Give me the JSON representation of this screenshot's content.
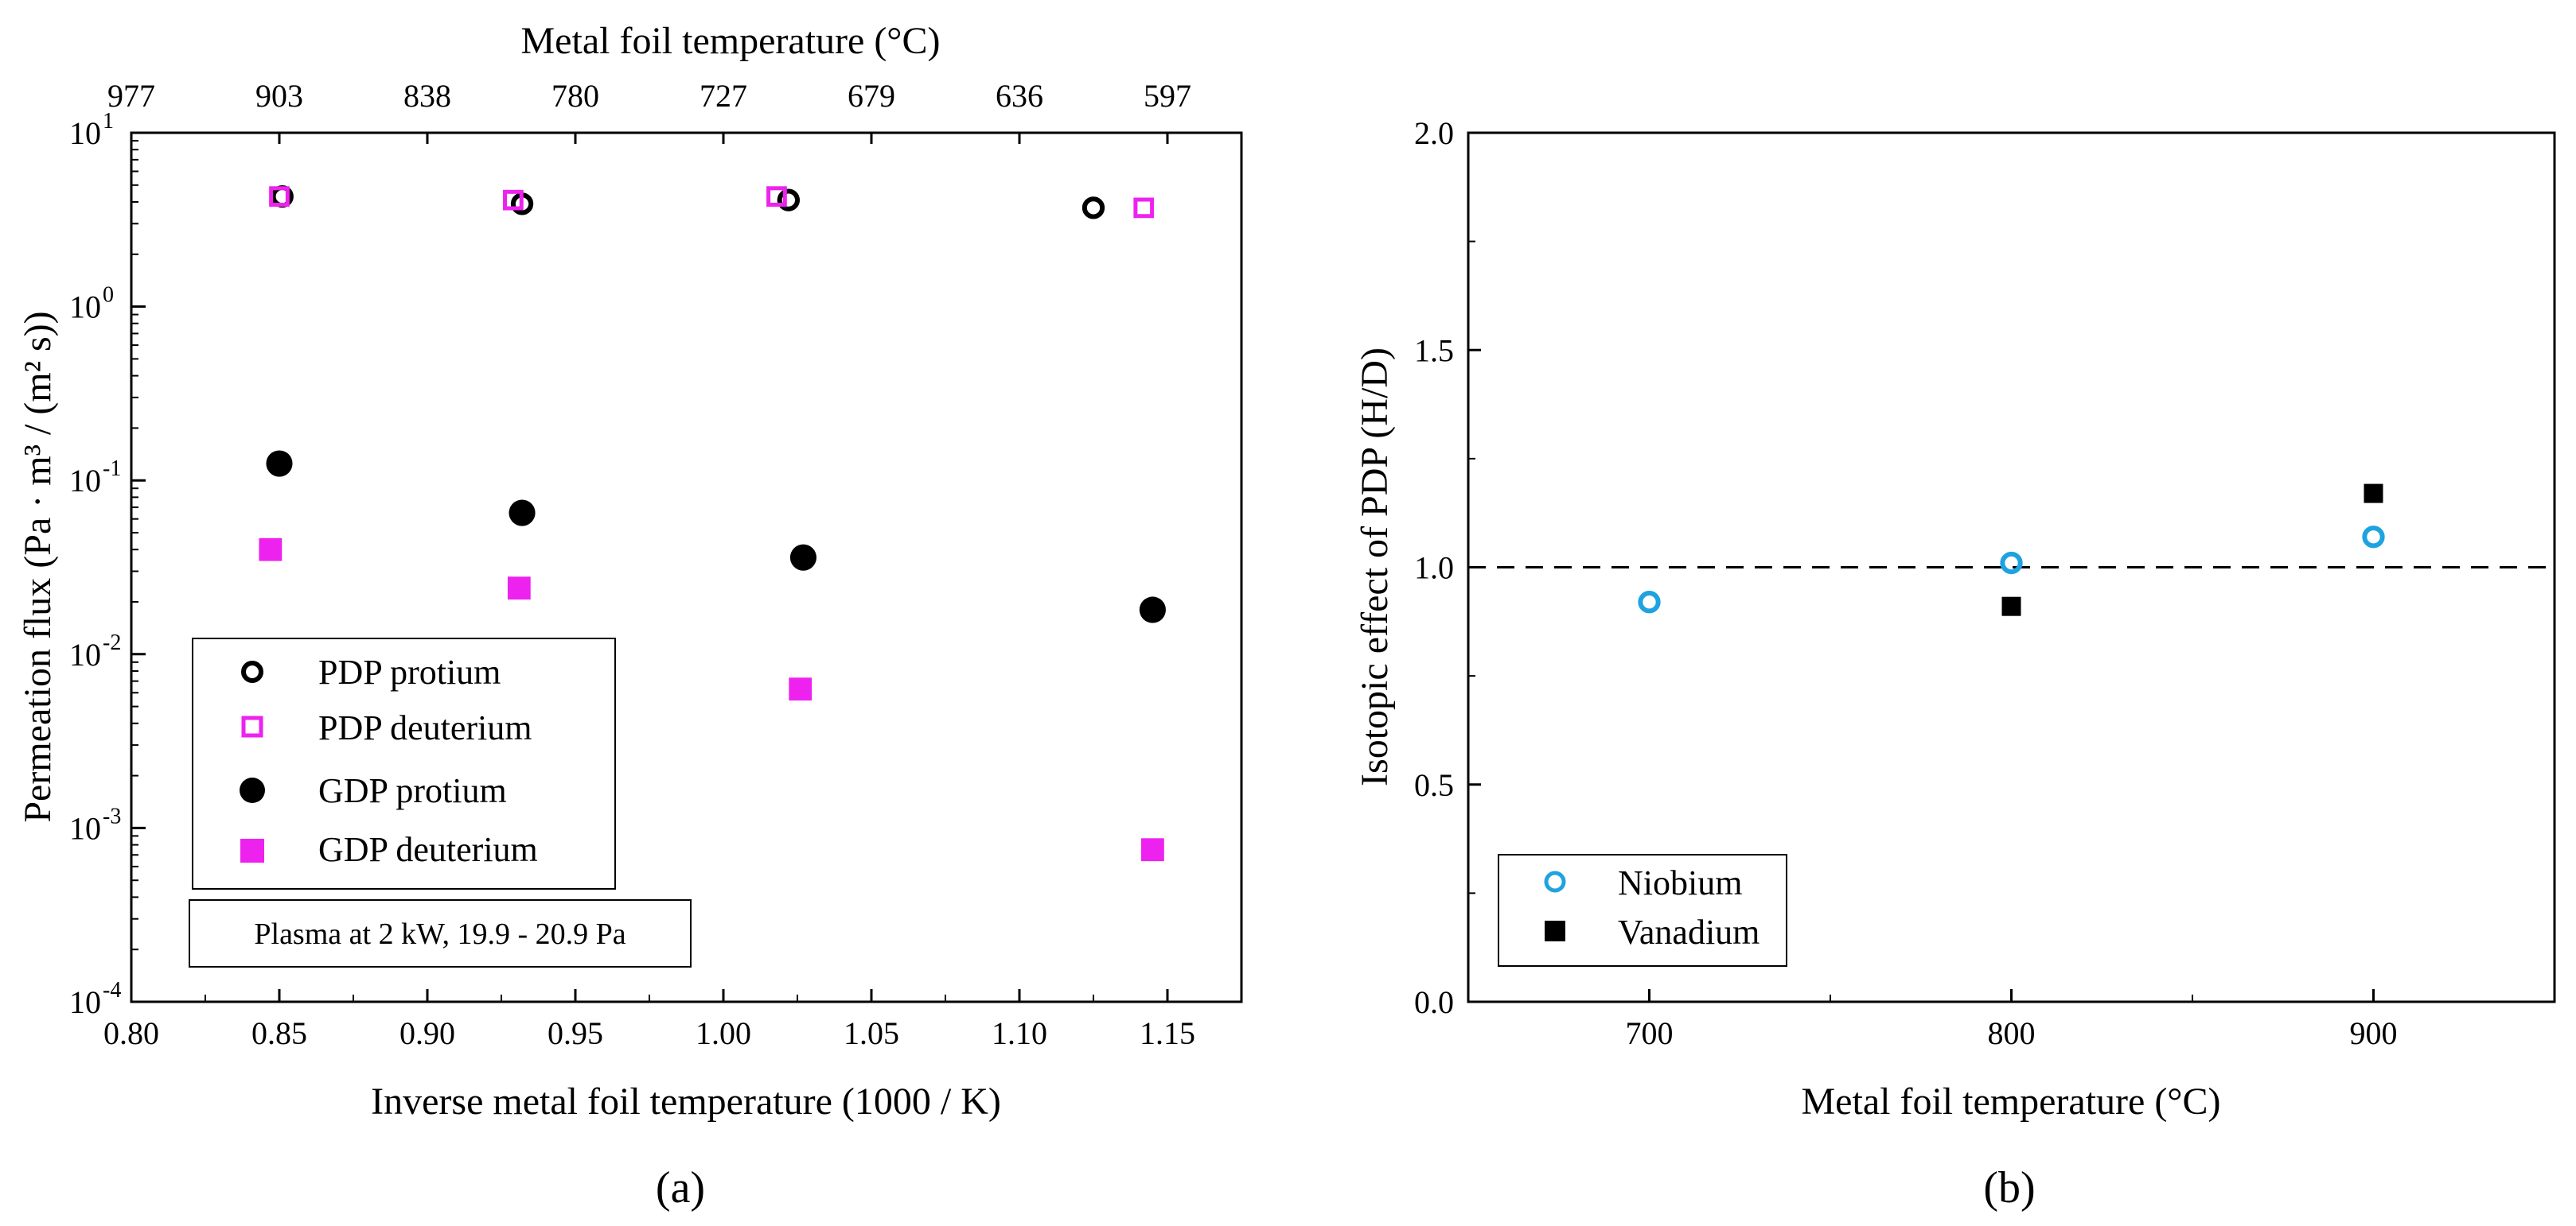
{
  "chart_data": [
    {
      "panel_label": "(a)",
      "type": "scatter",
      "xlabel": "Inverse metal foil temperature (1000 / K)",
      "ylabel": "Permeation flux (Pa · m³ / (m² s))",
      "top_xlabel": "Metal foil temperature (°C)",
      "xlim": [
        0.8,
        1.175
      ],
      "ylim": [
        0.0001,
        10
      ],
      "yscale": "log",
      "x_ticks": [
        {
          "value": 0.8,
          "label": "0.80"
        },
        {
          "value": 0.85,
          "label": "0.85"
        },
        {
          "value": 0.9,
          "label": "0.90"
        },
        {
          "value": 0.95,
          "label": "0.95"
        },
        {
          "value": 1.0,
          "label": "1.00"
        },
        {
          "value": 1.05,
          "label": "1.05"
        },
        {
          "value": 1.1,
          "label": "1.10"
        },
        {
          "value": 1.15,
          "label": "1.15"
        }
      ],
      "y_ticks": [
        {
          "value": 10,
          "base": "10",
          "exp": "1"
        },
        {
          "value": 1,
          "base": "10",
          "exp": "0"
        },
        {
          "value": 0.1,
          "base": "10",
          "exp": "-1"
        },
        {
          "value": 0.01,
          "base": "10",
          "exp": "-2"
        },
        {
          "value": 0.001,
          "base": "10",
          "exp": "-3"
        },
        {
          "value": 0.0001,
          "base": "10",
          "exp": "-4"
        }
      ],
      "top_ticks": [
        {
          "value": 0.8,
          "label": "977"
        },
        {
          "value": 0.85,
          "label": "903"
        },
        {
          "value": 0.9,
          "label": "838"
        },
        {
          "value": 0.95,
          "label": "780"
        },
        {
          "value": 1.0,
          "label": "727"
        },
        {
          "value": 1.05,
          "label": "679"
        },
        {
          "value": 1.1,
          "label": "636"
        },
        {
          "value": 1.15,
          "label": "597"
        }
      ],
      "series": [
        {
          "name": "PDP protium",
          "marker": "circle-open",
          "color": "#000000",
          "points": [
            {
              "x": 0.851,
              "y": 4.3
            },
            {
              "x": 0.932,
              "y": 3.9
            },
            {
              "x": 1.022,
              "y": 4.1
            },
            {
              "x": 1.125,
              "y": 3.7
            }
          ]
        },
        {
          "name": "PDP deuterium",
          "marker": "square-open",
          "color": "#ee22ee",
          "points": [
            {
              "x": 0.85,
              "y": 4.3
            },
            {
              "x": 0.929,
              "y": 4.1
            },
            {
              "x": 1.018,
              "y": 4.3
            },
            {
              "x": 1.142,
              "y": 3.7
            }
          ]
        },
        {
          "name": "GDP protium",
          "marker": "circle-filled",
          "color": "#000000",
          "points": [
            {
              "x": 0.85,
              "y": 0.125
            },
            {
              "x": 0.932,
              "y": 0.065
            },
            {
              "x": 1.027,
              "y": 0.036
            },
            {
              "x": 1.145,
              "y": 0.018
            }
          ]
        },
        {
          "name": "GDP deuterium",
          "marker": "square-filled",
          "color": "#ee22ee",
          "points": [
            {
              "x": 0.847,
              "y": 0.04
            },
            {
              "x": 0.931,
              "y": 0.024
            },
            {
              "x": 1.026,
              "y": 0.0063
            },
            {
              "x": 1.145,
              "y": 0.00075
            }
          ]
        }
      ],
      "annotation": "Plasma at 2 kW, 19.9 - 20.9 Pa"
    },
    {
      "panel_label": "(b)",
      "type": "scatter",
      "xlabel": "Metal foil temperature (°C)",
      "ylabel": "Isotopic effect of PDP (H/D)",
      "xlim": [
        650,
        950
      ],
      "ylim": [
        0.0,
        2.0
      ],
      "x_ticks": [
        {
          "value": 700,
          "label": "700"
        },
        {
          "value": 800,
          "label": "800"
        },
        {
          "value": 900,
          "label": "900"
        }
      ],
      "y_ticks": [
        {
          "value": 0.0,
          "label": "0.0"
        },
        {
          "value": 0.5,
          "label": "0.5"
        },
        {
          "value": 1.0,
          "label": "1.0"
        },
        {
          "value": 1.5,
          "label": "1.5"
        },
        {
          "value": 2.0,
          "label": "2.0"
        }
      ],
      "reference_line": 1.0,
      "series": [
        {
          "name": "Niobium",
          "marker": "circle-open",
          "color": "#1fa3e0",
          "points": [
            {
              "x": 700,
              "y": 0.92
            },
            {
              "x": 800,
              "y": 1.01
            },
            {
              "x": 900,
              "y": 1.07
            }
          ]
        },
        {
          "name": "Vanadium",
          "marker": "square-filled",
          "color": "#000000",
          "points": [
            {
              "x": 800,
              "y": 0.91
            },
            {
              "x": 900,
              "y": 1.17
            }
          ]
        }
      ]
    }
  ]
}
